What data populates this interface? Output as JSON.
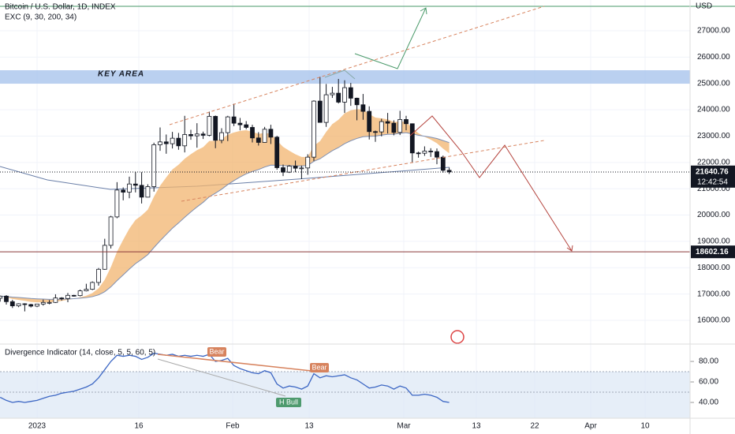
{
  "header": {
    "title": "Bitcoin / U.S. Dollar, 1D, INDEX",
    "indicator": "EXC (9, 30, 200, 34)",
    "currency": "USD"
  },
  "chart_data": {
    "type": "candlestick",
    "open": [
      16840,
      16920,
      16710,
      16550,
      16630,
      16600,
      16540,
      16620,
      16680,
      16680,
      16850,
      16830,
      16950,
      16940,
      17120,
      17180,
      17440,
      17940,
      18850,
      19930,
      20950,
      20870,
      21180,
      21130,
      20680,
      21080,
      22670,
      22780,
      22710,
      22920,
      22630,
      23060,
      23010,
      23080,
      23030,
      23750,
      22840,
      23130,
      23730,
      23490,
      23430,
      23330,
      22930,
      22760,
      23260,
      22960,
      21800,
      21630,
      21860,
      21780,
      21790,
      22200,
      24330,
      23520,
      24570,
      24630,
      24290,
      24840,
      24440,
      24190,
      23940,
      23170,
      23160,
      23550,
      23490,
      23140,
      23630,
      23470,
      22360,
      22350,
      22430,
      22410,
      22200,
      21700
    ],
    "high": [
      16940,
      16960,
      16780,
      16650,
      16650,
      16630,
      16630,
      16790,
      16770,
      16990,
      16880,
      17040,
      16970,
      17170,
      17390,
      17480,
      17990,
      19100,
      19970,
      21250,
      21050,
      21460,
      21640,
      21630,
      21170,
      22750,
      23330,
      23060,
      23160,
      23120,
      23770,
      23240,
      23490,
      23170,
      23930,
      23780,
      23300,
      23770,
      24230,
      23690,
      23570,
      23430,
      23150,
      23350,
      23430,
      23010,
      21920,
      21900,
      22070,
      21880,
      22310,
      24360,
      25250,
      24980,
      24870,
      25170,
      25120,
      25020,
      24460,
      24600,
      24130,
      23210,
      23660,
      23880,
      23600,
      23960,
      23770,
      23480,
      22410,
      22610,
      22540,
      22530,
      22260,
      21800
    ],
    "low": [
      16710,
      16600,
      16470,
      16500,
      16340,
      16490,
      16500,
      16560,
      16610,
      16660,
      16750,
      16690,
      16900,
      16910,
      17100,
      17150,
      17320,
      17920,
      18730,
      19880,
      20560,
      20640,
      20860,
      20440,
      20670,
      20890,
      22440,
      22330,
      22530,
      22480,
      22380,
      22860,
      22560,
      22890,
      22990,
      22540,
      22730,
      22810,
      23380,
      23220,
      23260,
      22760,
      22640,
      22750,
      22700,
      21720,
      21480,
      21600,
      21630,
      21370,
      21530,
      22050,
      23550,
      23350,
      24450,
      24240,
      23880,
      24150,
      23600,
      23620,
      22870,
      22780,
      22990,
      23100,
      23030,
      23040,
      23220,
      21980,
      22180,
      22250,
      22210,
      21930,
      21610,
      21560
    ],
    "close": [
      16920,
      16710,
      16550,
      16630,
      16600,
      16540,
      16620,
      16680,
      16680,
      16850,
      16830,
      16950,
      16940,
      17120,
      17180,
      17440,
      17940,
      18850,
      19930,
      20950,
      20870,
      21180,
      21130,
      20680,
      21080,
      22670,
      22780,
      22710,
      22920,
      22630,
      23060,
      23010,
      23080,
      23030,
      23750,
      22840,
      23130,
      23730,
      23490,
      23430,
      23330,
      22930,
      22760,
      23260,
      22960,
      21800,
      21630,
      21860,
      21780,
      21790,
      22200,
      24330,
      23520,
      24570,
      24630,
      24290,
      24840,
      24440,
      24190,
      23940,
      23170,
      23160,
      23550,
      23490,
      23140,
      23630,
      23470,
      22360,
      22350,
      22430,
      22410,
      22200,
      21700,
      21640
    ],
    "ylim": [
      15130,
      28170
    ],
    "yticks": [
      {
        "value": 16000,
        "label": "16000.00"
      },
      {
        "value": 17000,
        "label": "17000.00"
      },
      {
        "value": 18000,
        "label": "18000.00"
      },
      {
        "value": 19000,
        "label": "19000.00"
      },
      {
        "value": 20000,
        "label": "20000.00"
      },
      {
        "value": 21000,
        "label": "21000.00"
      },
      {
        "value": 22000,
        "label": "22000.00"
      },
      {
        "value": 23000,
        "label": "23000.00"
      },
      {
        "value": 24000,
        "label": "24000.00"
      },
      {
        "value": 25000,
        "label": "25000.00"
      },
      {
        "value": 26000,
        "label": "26000.00"
      },
      {
        "value": 27000,
        "label": "27000.00"
      }
    ],
    "xtick_labels": [
      "2023",
      "16",
      "Feb",
      "13",
      "Mar",
      "13",
      "22",
      "Apr",
      "10"
    ],
    "key_area": "KEY AREA",
    "last_price": 21640.76,
    "countdown": "12:42:54",
    "level": 18602.16,
    "up_color": "#ffffff",
    "down_color": "#131722"
  },
  "divergence": {
    "title": "Divergence Indicator (14, close, 5, 5, 60, 5)",
    "values": [
      45,
      42,
      40,
      41,
      40,
      41,
      42,
      44,
      46,
      47,
      49,
      50,
      51,
      53,
      55,
      58,
      64,
      72,
      80,
      86,
      85,
      86,
      85,
      82,
      84,
      88,
      87,
      86,
      87,
      85,
      86,
      85,
      86,
      85,
      87,
      80,
      81,
      83,
      76,
      73,
      71,
      69,
      68,
      71,
      69,
      58,
      54,
      56,
      55,
      53,
      56,
      68,
      64,
      66,
      65,
      66,
      67,
      64,
      62,
      58,
      54,
      55,
      57,
      56,
      53,
      56,
      54,
      47,
      47,
      48,
      47,
      45,
      41,
      40
    ],
    "color": "#3d67c4",
    "ylim": [
      24.6,
      96.2
    ],
    "yticks": [
      {
        "value": 40,
        "label": "40.00"
      },
      {
        "value": 60,
        "label": "60.00"
      },
      {
        "value": 80,
        "label": "80.00"
      }
    ],
    "annotations": [
      "Bear",
      "Bear",
      "H Bull"
    ]
  }
}
